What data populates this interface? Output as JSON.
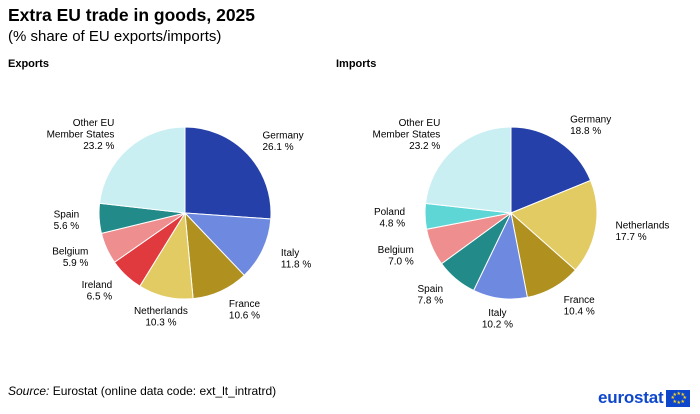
{
  "header": {
    "title": "Extra EU trade in goods, 2025",
    "subtitle": "(% share of EU exports/imports)"
  },
  "chart_data": [
    {
      "type": "pie",
      "title": "Exports",
      "slices": [
        {
          "label": "Germany",
          "value": 26.1,
          "value_label": "26.1 %",
          "color": "#2540a8"
        },
        {
          "label": "Italy",
          "value": 11.8,
          "value_label": "11.8 %",
          "color": "#6e8ae0"
        },
        {
          "label": "France",
          "value": 10.6,
          "value_label": "10.6 %",
          "color": "#b0911f"
        },
        {
          "label": "Netherlands",
          "value": 10.3,
          "value_label": "10.3 %",
          "color": "#e2cb62"
        },
        {
          "label": "Ireland",
          "value": 6.5,
          "value_label": "6.5 %",
          "color": "#e0393e"
        },
        {
          "label": "Belgium",
          "value": 5.9,
          "value_label": "5.9 %",
          "color": "#ef8e8e"
        },
        {
          "label": "Spain",
          "value": 5.6,
          "value_label": "5.6 %",
          "color": "#238a8a"
        },
        {
          "label": "Other EU Member States",
          "value": 23.2,
          "value_label": "23.2 %",
          "color": "#c9eff3"
        }
      ]
    },
    {
      "type": "pie",
      "title": "Imports",
      "slices": [
        {
          "label": "Germany",
          "value": 18.8,
          "value_label": "18.8 %",
          "color": "#2540a8"
        },
        {
          "label": "Netherlands",
          "value": 17.7,
          "value_label": "17.7 %",
          "color": "#e2cb62"
        },
        {
          "label": "France",
          "value": 10.4,
          "value_label": "10.4 %",
          "color": "#b0911f"
        },
        {
          "label": "Italy",
          "value": 10.2,
          "value_label": "10.2 %",
          "color": "#6e8ae0"
        },
        {
          "label": "Spain",
          "value": 7.8,
          "value_label": "7.8 %",
          "color": "#238a8a"
        },
        {
          "label": "Belgium",
          "value": 7.0,
          "value_label": "7.0 %",
          "color": "#ef8e8e"
        },
        {
          "label": "Poland",
          "value": 4.8,
          "value_label": "4.8 %",
          "color": "#5fd6d6"
        },
        {
          "label": "Other EU Member States",
          "value": 23.2,
          "value_label": "23.2 %",
          "color": "#c9eff3"
        }
      ]
    }
  ],
  "footer": {
    "source_label": "Source:",
    "source_text": "Eurostat (online data code: ext_lt_intratrd)",
    "logo_text": "eurostat"
  }
}
